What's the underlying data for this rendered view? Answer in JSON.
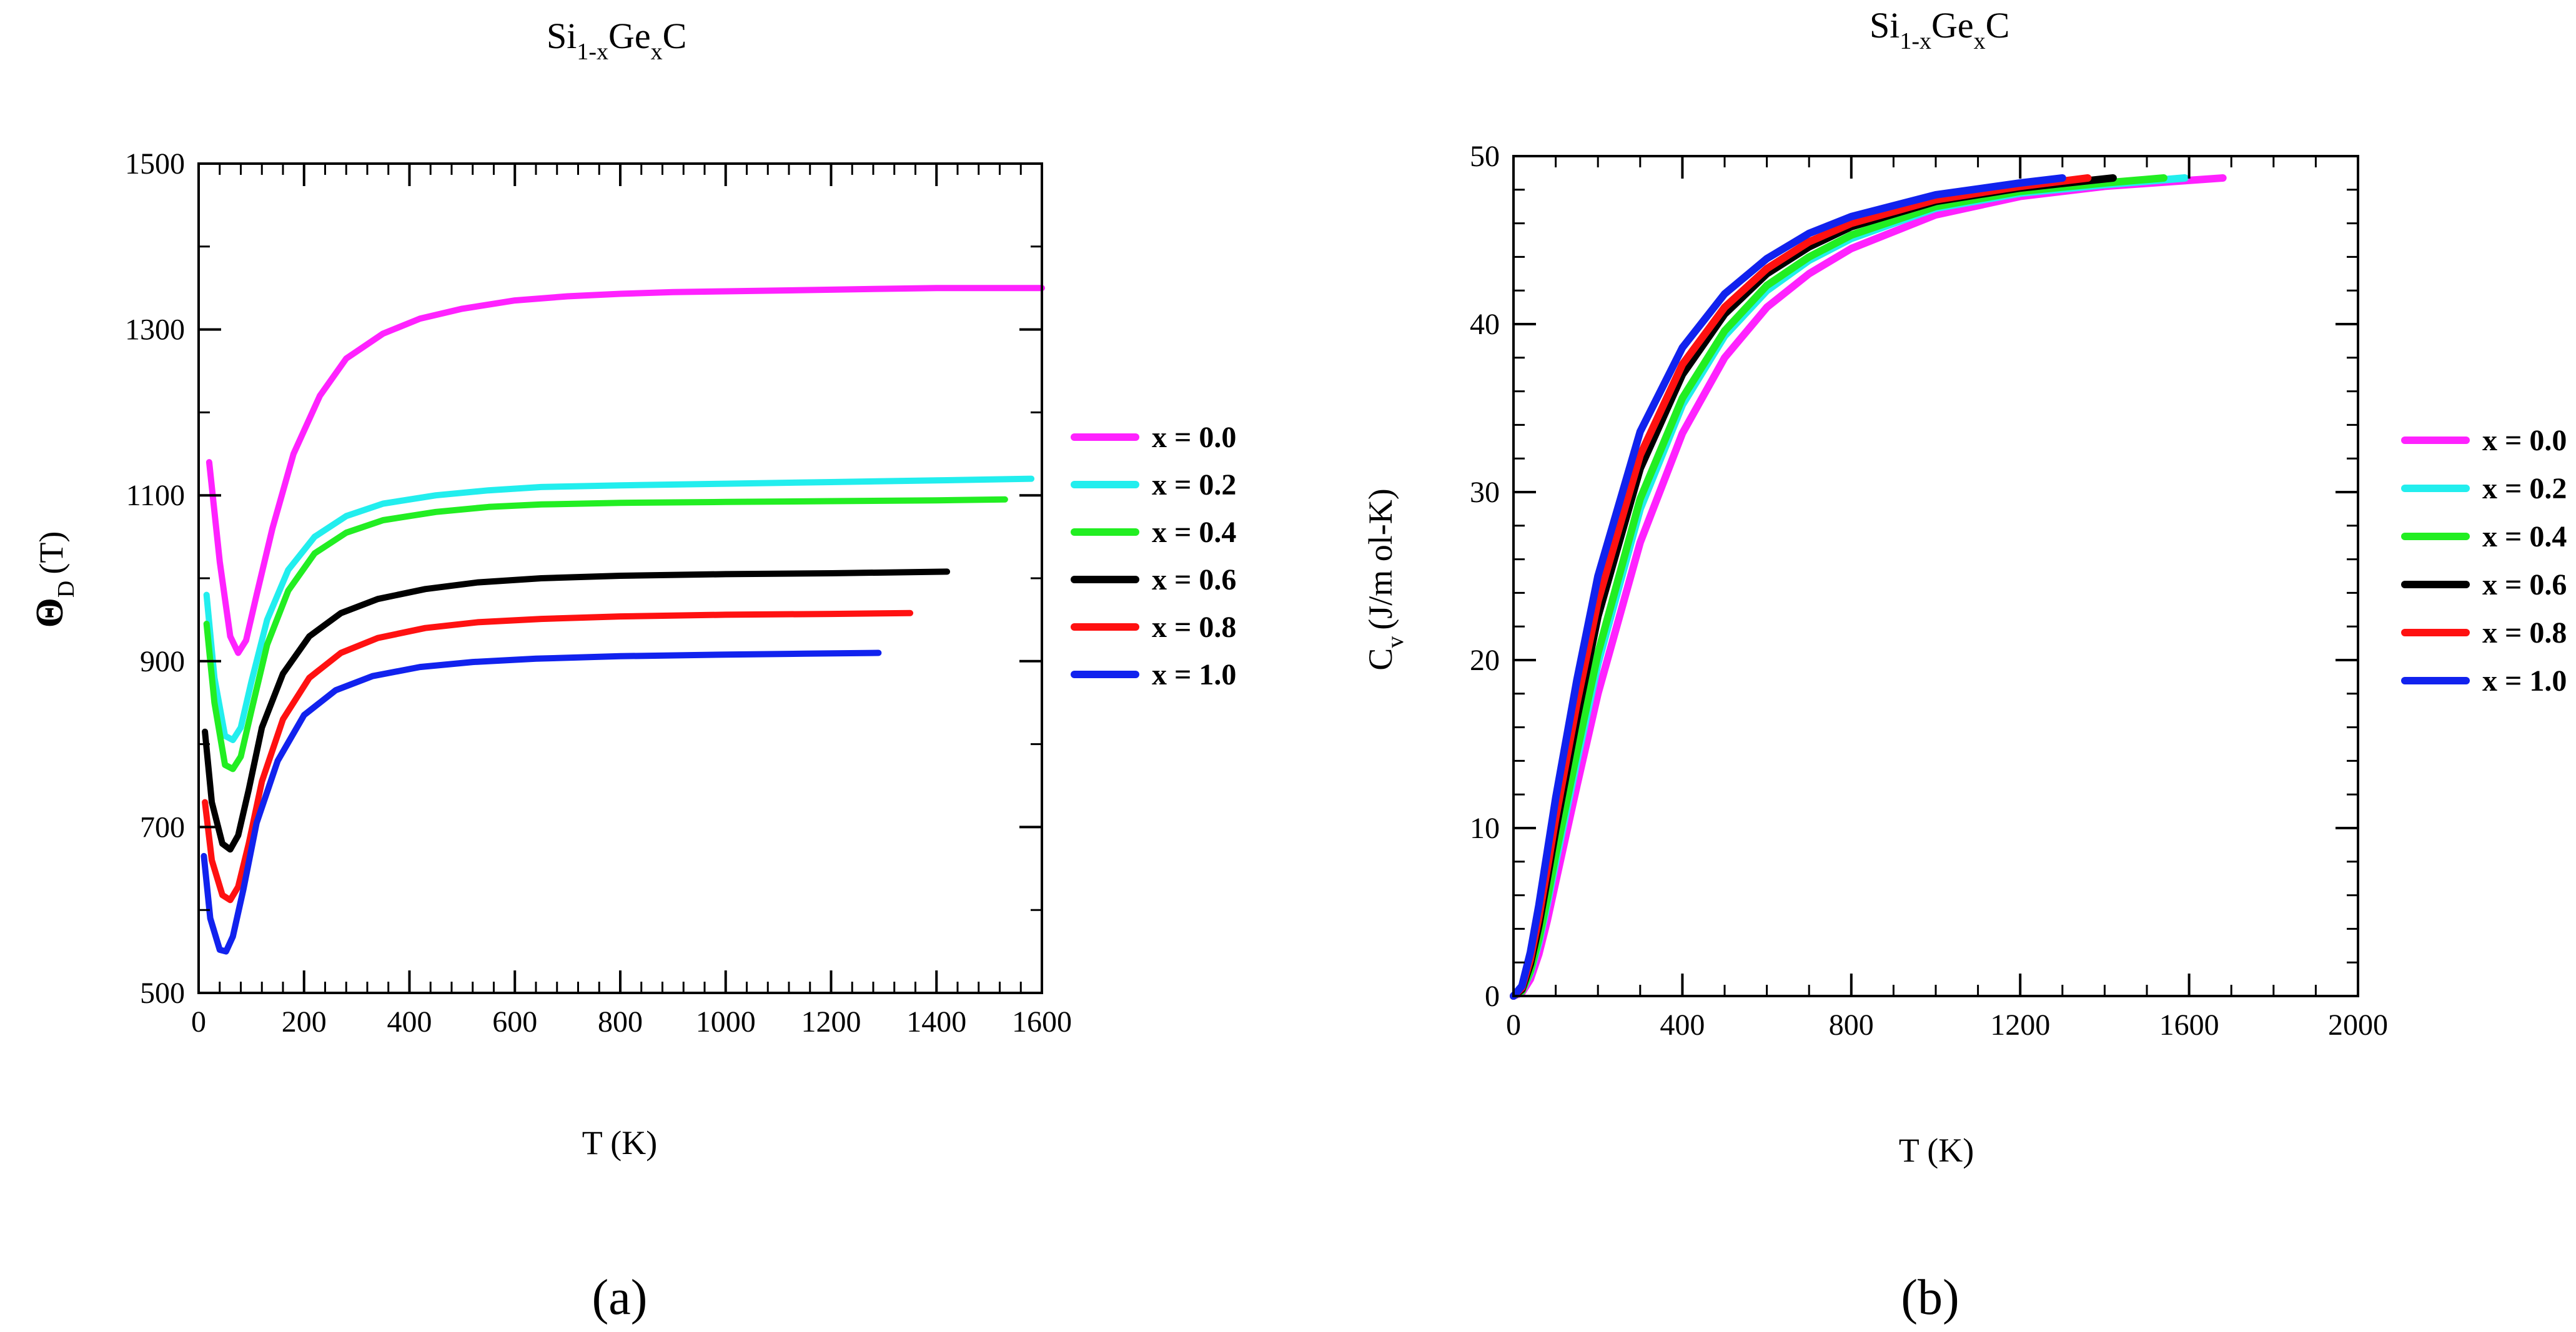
{
  "figure": {
    "panel_labels": [
      "(a)",
      "(b)"
    ]
  },
  "chart_data": [
    {
      "type": "line",
      "title_parts": {
        "si": "Si",
        "sub1": "1-x",
        "ge": "Ge",
        "sub2": "x",
        "c": "C"
      },
      "xlabel": "T (K)",
      "ylabel": {
        "main": "Θ",
        "sub": "D",
        "tail": "(T)"
      },
      "xlim": [
        0,
        1600
      ],
      "ylim": [
        500,
        1500
      ],
      "xticks": [
        0,
        200,
        400,
        600,
        800,
        1000,
        1200,
        1400,
        1600
      ],
      "yticks": [
        500,
        700,
        900,
        1100,
        1300,
        1500
      ],
      "legend_position": "right",
      "series": [
        {
          "name": "x = 0.0",
          "color": "#ff22ff",
          "x": [
            20,
            40,
            60,
            75,
            90,
            110,
            140,
            180,
            230,
            280,
            350,
            420,
            500,
            600,
            700,
            800,
            900,
            1000,
            1100,
            1200,
            1300,
            1400,
            1500,
            1600
          ],
          "y": [
            1140,
            1020,
            930,
            910,
            925,
            980,
            1060,
            1150,
            1220,
            1265,
            1295,
            1313,
            1325,
            1335,
            1340,
            1343,
            1345,
            1346,
            1347,
            1348,
            1349,
            1350,
            1350,
            1350
          ]
        },
        {
          "name": "x = 0.2",
          "color": "#22eeee",
          "x": [
            15,
            30,
            50,
            65,
            80,
            100,
            130,
            170,
            220,
            280,
            350,
            450,
            550,
            650,
            800,
            1000,
            1200,
            1400,
            1580
          ],
          "y": [
            980,
            880,
            810,
            805,
            820,
            875,
            950,
            1010,
            1050,
            1075,
            1090,
            1100,
            1106,
            1110,
            1112,
            1114,
            1116,
            1118,
            1120
          ]
        },
        {
          "name": "x = 0.4",
          "color": "#22ee22",
          "x": [
            15,
            30,
            50,
            65,
            80,
            100,
            130,
            170,
            220,
            280,
            350,
            450,
            550,
            650,
            800,
            1000,
            1200,
            1400,
            1530
          ],
          "y": [
            945,
            850,
            775,
            770,
            785,
            840,
            920,
            985,
            1030,
            1055,
            1070,
            1080,
            1086,
            1089,
            1091,
            1092,
            1093,
            1094,
            1095
          ]
        },
        {
          "name": "x = 0.6",
          "color": "#000000",
          "x": [
            12,
            25,
            45,
            60,
            75,
            95,
            120,
            160,
            210,
            270,
            340,
            430,
            530,
            650,
            800,
            1000,
            1200,
            1420
          ],
          "y": [
            815,
            730,
            680,
            673,
            690,
            745,
            820,
            885,
            930,
            958,
            975,
            987,
            995,
            1000,
            1003,
            1005,
            1006,
            1008
          ]
        },
        {
          "name": "x = 0.8",
          "color": "#ff1111",
          "x": [
            12,
            25,
            45,
            60,
            75,
            95,
            120,
            160,
            210,
            270,
            340,
            430,
            530,
            650,
            800,
            1000,
            1200,
            1350
          ],
          "y": [
            730,
            660,
            618,
            612,
            628,
            680,
            755,
            830,
            880,
            910,
            928,
            940,
            947,
            951,
            954,
            956,
            957,
            958
          ]
        },
        {
          "name": "x = 1.0",
          "color": "#1122ee",
          "x": [
            10,
            22,
            40,
            52,
            65,
            85,
            110,
            150,
            200,
            260,
            330,
            420,
            520,
            640,
            800,
            1000,
            1150,
            1290
          ],
          "y": [
            665,
            590,
            552,
            550,
            568,
            625,
            705,
            780,
            835,
            865,
            882,
            893,
            899,
            903,
            906,
            908,
            909,
            910
          ]
        }
      ]
    },
    {
      "type": "line",
      "title_parts": {
        "si": "Si",
        "sub1": "1-x",
        "ge": "Ge",
        "sub2": "x",
        "c": "C"
      },
      "xlabel": "T (K)",
      "ylabel": {
        "main": "C",
        "sub": "v",
        "tail": "(J/m ol-K)"
      },
      "xlim": [
        0,
        2000
      ],
      "ylim": [
        0,
        50
      ],
      "xticks": [
        0,
        400,
        800,
        1200,
        1600,
        2000
      ],
      "yticks": [
        0,
        10,
        20,
        30,
        40,
        50
      ],
      "legend_position": "right",
      "series": [
        {
          "name": "x = 0.0",
          "color": "#ff22ff",
          "x": [
            0,
            20,
            40,
            60,
            80,
            100,
            150,
            200,
            300,
            400,
            500,
            600,
            700,
            800,
            1000,
            1200,
            1400,
            1680
          ],
          "y": [
            0,
            0.2,
            1.0,
            2.5,
            4.5,
            6.8,
            12.5,
            18.0,
            27.0,
            33.5,
            38.0,
            41.0,
            43.0,
            44.5,
            46.5,
            47.6,
            48.2,
            48.7
          ]
        },
        {
          "name": "x = 0.2",
          "color": "#22eeee",
          "x": [
            0,
            20,
            40,
            60,
            80,
            100,
            150,
            200,
            300,
            400,
            500,
            600,
            700,
            800,
            1000,
            1200,
            1400,
            1590
          ],
          "y": [
            0,
            0.3,
            1.4,
            3.2,
            5.5,
            8.0,
            14.0,
            19.8,
            29.0,
            35.2,
            39.3,
            42.0,
            43.8,
            45.1,
            46.9,
            47.8,
            48.3,
            48.7
          ]
        },
        {
          "name": "x = 0.4",
          "color": "#22ee22",
          "x": [
            0,
            20,
            40,
            60,
            80,
            100,
            150,
            200,
            300,
            400,
            500,
            600,
            700,
            800,
            1000,
            1200,
            1400,
            1540
          ],
          "y": [
            0,
            0.3,
            1.5,
            3.4,
            5.8,
            8.4,
            14.5,
            20.4,
            29.6,
            35.6,
            39.6,
            42.3,
            44.0,
            45.3,
            47.0,
            47.9,
            48.4,
            48.7
          ]
        },
        {
          "name": "x = 0.6",
          "color": "#000000",
          "x": [
            0,
            20,
            40,
            60,
            80,
            100,
            150,
            200,
            300,
            400,
            500,
            600,
            700,
            800,
            1000,
            1200,
            1420
          ],
          "y": [
            0,
            0.4,
            1.9,
            4.2,
            7.0,
            9.9,
            16.5,
            22.6,
            31.4,
            37.0,
            40.6,
            43.0,
            44.6,
            45.8,
            47.3,
            48.1,
            48.7
          ]
        },
        {
          "name": "x = 0.8",
          "color": "#ff1111",
          "x": [
            0,
            20,
            40,
            60,
            80,
            100,
            150,
            200,
            300,
            400,
            500,
            600,
            700,
            800,
            1000,
            1200,
            1360
          ],
          "y": [
            0,
            0.5,
            2.2,
            4.7,
            7.6,
            10.6,
            17.4,
            23.5,
            32.2,
            37.6,
            41.0,
            43.3,
            44.9,
            46.0,
            47.4,
            48.2,
            48.7
          ]
        },
        {
          "name": "x = 1.0",
          "color": "#1122ee",
          "x": [
            0,
            20,
            40,
            60,
            80,
            100,
            150,
            200,
            300,
            400,
            500,
            600,
            700,
            800,
            1000,
            1200,
            1300
          ],
          "y": [
            0,
            0.6,
            2.6,
            5.4,
            8.6,
            11.8,
            18.8,
            25.0,
            33.6,
            38.6,
            41.8,
            43.9,
            45.4,
            46.4,
            47.7,
            48.4,
            48.7
          ]
        }
      ]
    }
  ]
}
